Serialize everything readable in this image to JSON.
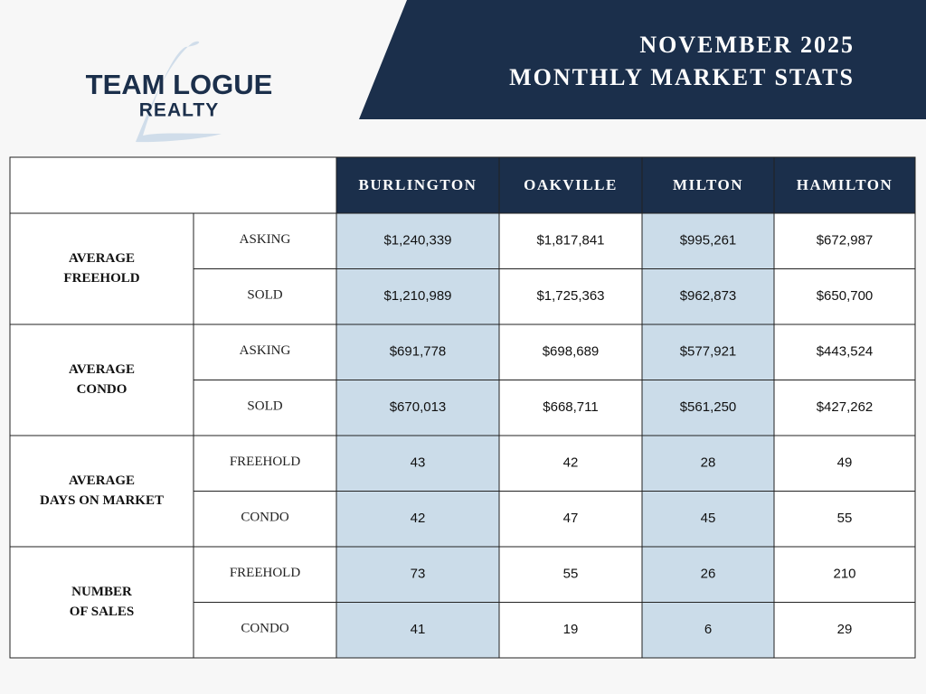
{
  "header": {
    "logo": {
      "name": "TEAM LOGUE",
      "sub": "REALTY"
    },
    "title": [
      "NOVEMBER 2025",
      "MONTHLY MARKET STATS"
    ]
  },
  "table": {
    "columns": [
      "BURLINGTON",
      "OAKVILLE",
      "MILTON",
      "HAMILTON"
    ],
    "groups": [
      {
        "label": [
          "AVERAGE",
          "FREEHOLD"
        ],
        "rows": [
          {
            "label": "ASKING",
            "values": [
              "$1,240,339",
              "$1,817,841",
              "$995,261",
              "$672,987"
            ]
          },
          {
            "label": "SOLD",
            "values": [
              "$1,210,989",
              "$1,725,363",
              "$962,873",
              "$650,700"
            ]
          }
        ]
      },
      {
        "label": [
          "AVERAGE",
          "CONDO"
        ],
        "rows": [
          {
            "label": "ASKING",
            "values": [
              "$691,778",
              "$698,689",
              "$577,921",
              "$443,524"
            ]
          },
          {
            "label": "SOLD",
            "values": [
              "$670,013",
              "$668,711",
              "$561,250",
              "$427,262"
            ]
          }
        ]
      },
      {
        "label": [
          "AVERAGE",
          "DAYS ON MARKET"
        ],
        "rows": [
          {
            "label": "FREEHOLD",
            "values": [
              "43",
              "42",
              "28",
              "49"
            ]
          },
          {
            "label": "CONDO",
            "values": [
              "42",
              "47",
              "45",
              "55"
            ]
          }
        ]
      },
      {
        "label": [
          "NUMBER",
          "OF SALES"
        ],
        "rows": [
          {
            "label": "FREEHOLD",
            "values": [
              "73",
              "55",
              "26",
              "210"
            ]
          },
          {
            "label": "CONDO",
            "values": [
              "41",
              "19",
              "6",
              "29"
            ]
          }
        ]
      }
    ]
  }
}
